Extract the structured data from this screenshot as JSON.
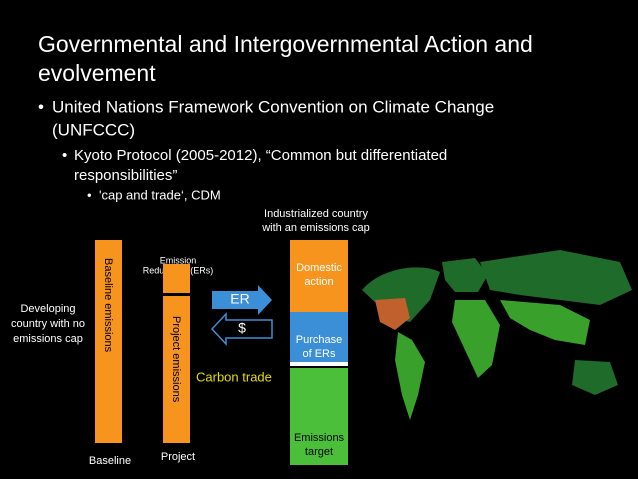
{
  "title": {
    "lines": [
      "Governmental and Intergovernmental Action and",
      "evolvement"
    ]
  },
  "bullets": [
    {
      "lines": [
        "United Nations Framework Convention on Climate Change",
        "(UNFCCC)"
      ]
    },
    {
      "lines": [
        "Kyoto Protocol (2005-2012), “Common but differentiated",
        "responsibilities”"
      ]
    },
    {
      "lines": [
        "'cap and trade‘, CDM"
      ]
    }
  ],
  "diagram": {
    "developing": {
      "lines": [
        "Developing",
        "country with no",
        "emissions cap"
      ]
    },
    "industrialized": {
      "lines": [
        "Industrialized country",
        "with an emissions cap"
      ]
    },
    "baseline_emissions": "Baseline emissions",
    "emission_reductions": {
      "lines": [
        "Emission",
        "Reductions (ERs)"
      ]
    },
    "project_emissions": "Project emissions",
    "baseline": "Baseline",
    "project": "Project",
    "er": "ER",
    "dollar": "$",
    "carbon_trade": "Carbon trade",
    "domestic_action": {
      "lines": [
        "Domestic",
        "action"
      ]
    },
    "purchase": {
      "lines": [
        "Purchase",
        "of ERs"
      ]
    },
    "target": {
      "lines": [
        "Emissions",
        "target"
      ]
    }
  }
}
